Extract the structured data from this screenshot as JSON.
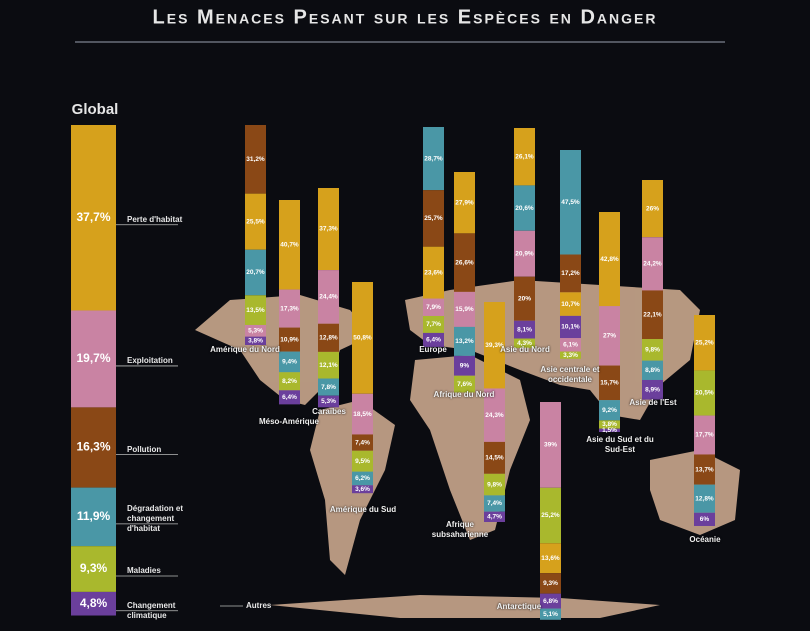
{
  "chart_data": {
    "type": "stacked-bar-map",
    "title": "Les Menaces Pesant sur les Espèces en Danger",
    "global": {
      "title": "Global",
      "other_label": "Autres",
      "segments": [
        {
          "name": "Perte d'habitat",
          "value": 37.7,
          "label": "37,7%",
          "color": "#d6a11c"
        },
        {
          "name": "Exploitation",
          "value": 19.7,
          "label": "19,7%",
          "color": "#c983a3"
        },
        {
          "name": "Pollution",
          "value": 16.3,
          "label": "16,3%",
          "color": "#8a4816"
        },
        {
          "name": "Dégradation et changement d'habitat",
          "value": 11.9,
          "label": "11,9%",
          "color": "#4a97a6"
        },
        {
          "name": "Maladies",
          "value": 9.3,
          "label": "9,3%",
          "color": "#a9b82d"
        },
        {
          "name": "Changement climatique",
          "value": 4.8,
          "label": "4,8%",
          "color": "#6b3f9c"
        }
      ]
    },
    "regions": [
      {
        "name": "Amérique du Nord",
        "segments": [
          {
            "value": 31.2,
            "label": "31,2%",
            "color": "#8a4816"
          },
          {
            "value": 25.5,
            "label": "25,5%",
            "color": "#d6a11c"
          },
          {
            "value": 20.7,
            "label": "20,7%",
            "color": "#4a97a6"
          },
          {
            "value": 13.5,
            "label": "13,5%",
            "color": "#a9b82d"
          },
          {
            "value": 5.3,
            "label": "5,3%",
            "color": "#c983a3"
          },
          {
            "value": 3.8,
            "label": "3,8%",
            "color": "#6b3f9c"
          }
        ]
      },
      {
        "name": "Méso-Amérique",
        "segments": [
          {
            "value": 40.7,
            "label": "40,7%",
            "color": "#d6a11c"
          },
          {
            "value": 17.3,
            "label": "17,3%",
            "color": "#c983a3"
          },
          {
            "value": 10.9,
            "label": "10,9%",
            "color": "#8a4816"
          },
          {
            "value": 9.4,
            "label": "9,4%",
            "color": "#4a97a6"
          },
          {
            "value": 8.2,
            "label": "8,2%",
            "color": "#a9b82d"
          },
          {
            "value": 6.4,
            "label": "6,4%",
            "color": "#6b3f9c"
          }
        ]
      },
      {
        "name": "Caraïbes",
        "segments": [
          {
            "value": 37.3,
            "label": "37,3%",
            "color": "#d6a11c"
          },
          {
            "value": 24.4,
            "label": "24,4%",
            "color": "#c983a3"
          },
          {
            "value": 12.8,
            "label": "12,8%",
            "color": "#8a4816"
          },
          {
            "value": 12.1,
            "label": "12,1%",
            "color": "#a9b82d"
          },
          {
            "value": 7.8,
            "label": "7,8%",
            "color": "#4a97a6"
          },
          {
            "value": 5.3,
            "label": "5,3%",
            "color": "#6b3f9c"
          }
        ]
      },
      {
        "name": "Amérique du Sud",
        "segments": [
          {
            "value": 50.8,
            "label": "50,8%",
            "color": "#d6a11c"
          },
          {
            "value": 18.5,
            "label": "18,5%",
            "color": "#c983a3"
          },
          {
            "value": 7.4,
            "label": "7,4%",
            "color": "#8a4816"
          },
          {
            "value": 9.5,
            "label": "9,5%",
            "color": "#a9b82d"
          },
          {
            "value": 6.2,
            "label": "6,2%",
            "color": "#4a97a6"
          },
          {
            "value": 3.6,
            "label": "3,6%",
            "color": "#6b3f9c"
          }
        ]
      },
      {
        "name": "Europe",
        "segments": [
          {
            "value": 28.7,
            "label": "28,7%",
            "color": "#4a97a6"
          },
          {
            "value": 25.7,
            "label": "25,7%",
            "color": "#8a4816"
          },
          {
            "value": 23.6,
            "label": "23,6%",
            "color": "#d6a11c"
          },
          {
            "value": 7.9,
            "label": "7,9%",
            "color": "#c983a3"
          },
          {
            "value": 7.7,
            "label": "7,7%",
            "color": "#a9b82d"
          },
          {
            "value": 6.4,
            "label": "6,4%",
            "color": "#6b3f9c"
          }
        ]
      },
      {
        "name": "Afrique du Nord",
        "segments": [
          {
            "value": 27.9,
            "label": "27,9%",
            "color": "#d6a11c"
          },
          {
            "value": 26.6,
            "label": "26,6%",
            "color": "#8a4816"
          },
          {
            "value": 15.9,
            "label": "15,9%",
            "color": "#c983a3"
          },
          {
            "value": 13.2,
            "label": "13,2%",
            "color": "#4a97a6"
          },
          {
            "value": 9,
            "label": "9%",
            "color": "#6b3f9c"
          },
          {
            "value": 7.6,
            "label": "7,6%",
            "color": "#a9b82d"
          }
        ]
      },
      {
        "name": "Asie du Nord",
        "segments": [
          {
            "value": 26.1,
            "label": "26,1%",
            "color": "#d6a11c"
          },
          {
            "value": 20.6,
            "label": "20,6%",
            "color": "#4a97a6"
          },
          {
            "value": 20.9,
            "label": "20,9%",
            "color": "#c983a3"
          },
          {
            "value": 20,
            "label": "20%",
            "color": "#8a4816"
          },
          {
            "value": 8.1,
            "label": "8,1%",
            "color": "#6b3f9c"
          },
          {
            "value": 4.3,
            "label": "4,3%",
            "color": "#a9b82d"
          }
        ]
      },
      {
        "name": "Asie centrale et occidentale",
        "segments": [
          {
            "value": 47.5,
            "label": "47,5%",
            "color": "#4a97a6"
          },
          {
            "value": 17.2,
            "label": "17,2%",
            "color": "#8a4816"
          },
          {
            "value": 10.7,
            "label": "10,7%",
            "color": "#d6a11c"
          },
          {
            "value": 10.1,
            "label": "10,1%",
            "color": "#6b3f9c"
          },
          {
            "value": 6.1,
            "label": "6,1%",
            "color": "#c983a3"
          },
          {
            "value": 3.3,
            "label": "3,3%",
            "color": "#a9b82d"
          }
        ]
      },
      {
        "name": "Asie du Sud et du Sud-Est",
        "segments": [
          {
            "value": 42.8,
            "label": "42,8%",
            "color": "#d6a11c"
          },
          {
            "value": 27,
            "label": "27%",
            "color": "#c983a3"
          },
          {
            "value": 15.7,
            "label": "15,7%",
            "color": "#8a4816"
          },
          {
            "value": 9.2,
            "label": "9,2%",
            "color": "#4a97a6"
          },
          {
            "value": 3.8,
            "label": "3,8%",
            "color": "#a9b82d"
          },
          {
            "value": 1.5,
            "label": "1,5%",
            "color": "#6b3f9c"
          }
        ]
      },
      {
        "name": "Asie de l'Est",
        "segments": [
          {
            "value": 26,
            "label": "26%",
            "color": "#d6a11c"
          },
          {
            "value": 24.2,
            "label": "24,2%",
            "color": "#c983a3"
          },
          {
            "value": 22.1,
            "label": "22,1%",
            "color": "#8a4816"
          },
          {
            "value": 9.8,
            "label": "9,8%",
            "color": "#a9b82d"
          },
          {
            "value": 8.8,
            "label": "8,8%",
            "color": "#4a97a6"
          },
          {
            "value": 8.9,
            "label": "8,9%",
            "color": "#6b3f9c"
          }
        ]
      },
      {
        "name": "Afrique subsaharienne",
        "segments": [
          {
            "value": 39.3,
            "label": "39,3%",
            "color": "#d6a11c"
          },
          {
            "value": 24.3,
            "label": "24,3%",
            "color": "#c983a3"
          },
          {
            "value": 14.5,
            "label": "14,5%",
            "color": "#8a4816"
          },
          {
            "value": 9.8,
            "label": "9,8%",
            "color": "#a9b82d"
          },
          {
            "value": 7.4,
            "label": "7,4%",
            "color": "#4a97a6"
          },
          {
            "value": 4.7,
            "label": "4,7%",
            "color": "#6b3f9c"
          }
        ]
      },
      {
        "name": "Antarctique",
        "segments": [
          {
            "value": 39,
            "label": "39%",
            "color": "#c983a3"
          },
          {
            "value": 25.2,
            "label": "25,2%",
            "color": "#a9b82d"
          },
          {
            "value": 13.6,
            "label": "13,6%",
            "color": "#d6a11c"
          },
          {
            "value": 9.3,
            "label": "9,3%",
            "color": "#8a4816"
          },
          {
            "value": 6.8,
            "label": "6,8%",
            "color": "#6b3f9c"
          },
          {
            "value": 5.1,
            "label": "5,1%",
            "color": "#4a97a6"
          }
        ]
      },
      {
        "name": "Océanie",
        "segments": [
          {
            "value": 25.2,
            "label": "25,2%",
            "color": "#d6a11c"
          },
          {
            "value": 20.5,
            "label": "20,5%",
            "color": "#a9b82d"
          },
          {
            "value": 17.7,
            "label": "17,7%",
            "color": "#c983a3"
          },
          {
            "value": 13.7,
            "label": "13,7%",
            "color": "#8a4816"
          },
          {
            "value": 12.8,
            "label": "12,8%",
            "color": "#4a97a6"
          },
          {
            "value": 6,
            "label": "6%",
            "color": "#6b3f9c"
          }
        ]
      }
    ]
  }
}
